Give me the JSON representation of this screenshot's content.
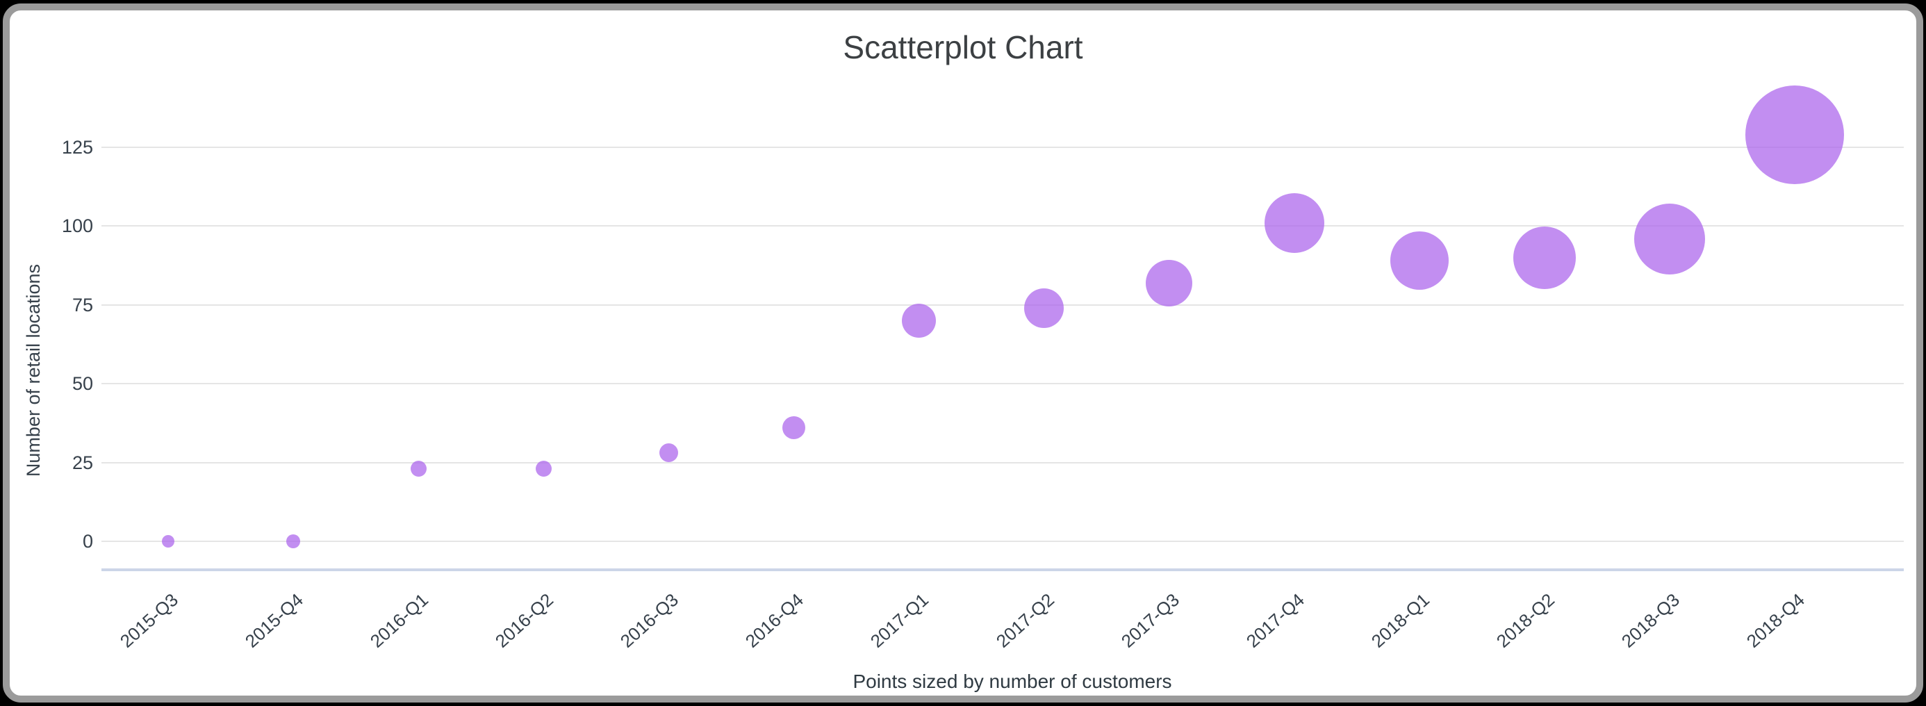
{
  "page": {
    "background_color": "#000000",
    "card_border_color": "#9b9b9b",
    "card_background_color": "#ffffff"
  },
  "chart_data": {
    "type": "scatter",
    "title": "Scatterplot Chart",
    "xlabel": "",
    "ylabel": "Number of retail locations",
    "caption": "Points sized by number of customers",
    "size_encoding": "number of customers",
    "accent_color": "#c18cf1",
    "text_color": "#3c4043",
    "gridline_color": "#e5e5e5",
    "baseline_color": "#ccd5e8",
    "grid": true,
    "legend_position": "none",
    "yticks": [
      0,
      25,
      50,
      75,
      100,
      125
    ],
    "ylim": [
      0,
      140
    ],
    "categories": [
      "2015-Q3",
      "2015-Q4",
      "2016-Q1",
      "2016-Q2",
      "2016-Q3",
      "2016-Q4",
      "2017-Q1",
      "2017-Q2",
      "2017-Q3",
      "2017-Q4",
      "2018-Q1",
      "2018-Q2",
      "2018-Q3",
      "2018-Q4"
    ],
    "series": [
      {
        "name": "Number of retail locations",
        "points": [
          {
            "quarter": "2015-Q3",
            "locations": 0,
            "bubble_radius_px": 9
          },
          {
            "quarter": "2015-Q4",
            "locations": 0,
            "bubble_radius_px": 10
          },
          {
            "quarter": "2016-Q1",
            "locations": 23,
            "bubble_radius_px": 11.5
          },
          {
            "quarter": "2016-Q2",
            "locations": 23,
            "bubble_radius_px": 11.5
          },
          {
            "quarter": "2016-Q3",
            "locations": 28,
            "bubble_radius_px": 13.5
          },
          {
            "quarter": "2016-Q4",
            "locations": 36,
            "bubble_radius_px": 16.5
          },
          {
            "quarter": "2017-Q1",
            "locations": 70,
            "bubble_radius_px": 24.5
          },
          {
            "quarter": "2017-Q2",
            "locations": 74,
            "bubble_radius_px": 28.5
          },
          {
            "quarter": "2017-Q3",
            "locations": 82,
            "bubble_radius_px": 33.5
          },
          {
            "quarter": "2017-Q4",
            "locations": 101,
            "bubble_radius_px": 43
          },
          {
            "quarter": "2018-Q1",
            "locations": 89,
            "bubble_radius_px": 42
          },
          {
            "quarter": "2018-Q2",
            "locations": 90,
            "bubble_radius_px": 45
          },
          {
            "quarter": "2018-Q3",
            "locations": 96,
            "bubble_radius_px": 51
          },
          {
            "quarter": "2018-Q4",
            "locations": 129,
            "bubble_radius_px": 71
          }
        ]
      }
    ]
  }
}
